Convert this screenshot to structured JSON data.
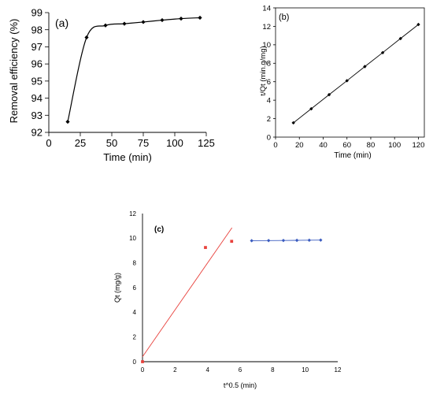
{
  "chart_data": [
    {
      "panel": "(a)",
      "type": "line",
      "title": "",
      "xlabel": "Time (min)",
      "ylabel": "Removal efficiency (%)",
      "xlim": [
        0,
        125
      ],
      "ylim": [
        92,
        99
      ],
      "xticks": [
        0,
        25,
        50,
        75,
        100,
        125
      ],
      "yticks": [
        92,
        93,
        94,
        95,
        96,
        97,
        98,
        99
      ],
      "grid": false,
      "series": [
        {
          "color": "#000000",
          "marker": "diamond",
          "smooth": true,
          "x": [
            15,
            30,
            45,
            60,
            75,
            90,
            105,
            120
          ],
          "y": [
            92.62,
            97.55,
            98.25,
            98.35,
            98.45,
            98.56,
            98.65,
            98.7
          ]
        }
      ]
    },
    {
      "panel": "(b)",
      "type": "line",
      "title": "",
      "xlabel": "Time (min)",
      "ylabel": "t/Qt (min.g/mg)",
      "xlim": [
        0,
        125
      ],
      "ylim": [
        0,
        14
      ],
      "xticks": [
        0,
        20,
        40,
        60,
        80,
        100,
        120
      ],
      "yticks": [
        0,
        2,
        4,
        6,
        8,
        10,
        12,
        14
      ],
      "grid": false,
      "series": [
        {
          "color": "#000000",
          "marker": "diamond",
          "smooth": false,
          "x": [
            15,
            30,
            45,
            60,
            75,
            90,
            105,
            120
          ],
          "y": [
            1.55,
            3.07,
            4.6,
            6.11,
            7.64,
            9.15,
            10.68,
            12.2
          ]
        }
      ]
    },
    {
      "panel": "(c)",
      "type": "scatter",
      "title": "",
      "xlabel": "t^0.5 (min)",
      "ylabel": "Qt (mg/g)",
      "xlim": [
        0,
        12
      ],
      "ylim": [
        0,
        12
      ],
      "xticks": [
        0,
        2,
        4,
        6,
        8,
        10,
        12
      ],
      "yticks": [
        0,
        2,
        4,
        6,
        8,
        10,
        12
      ],
      "grid": false,
      "series": [
        {
          "color": "#e8413c",
          "marker": "square",
          "line": false,
          "x": [
            0,
            3.87,
            5.48
          ],
          "y": [
            0,
            9.25,
            9.75
          ]
        },
        {
          "color": "#e8413c",
          "marker": "none",
          "line": true,
          "x": [
            0,
            5.5
          ],
          "y": [
            0.4,
            10.85
          ]
        },
        {
          "color": "#3a5bbf",
          "marker": "diamond",
          "line": true,
          "x": [
            6.71,
            7.75,
            8.66,
            9.49,
            10.25,
            10.95
          ],
          "y": [
            9.8,
            9.81,
            9.82,
            9.83,
            9.84,
            9.85
          ]
        }
      ]
    }
  ]
}
